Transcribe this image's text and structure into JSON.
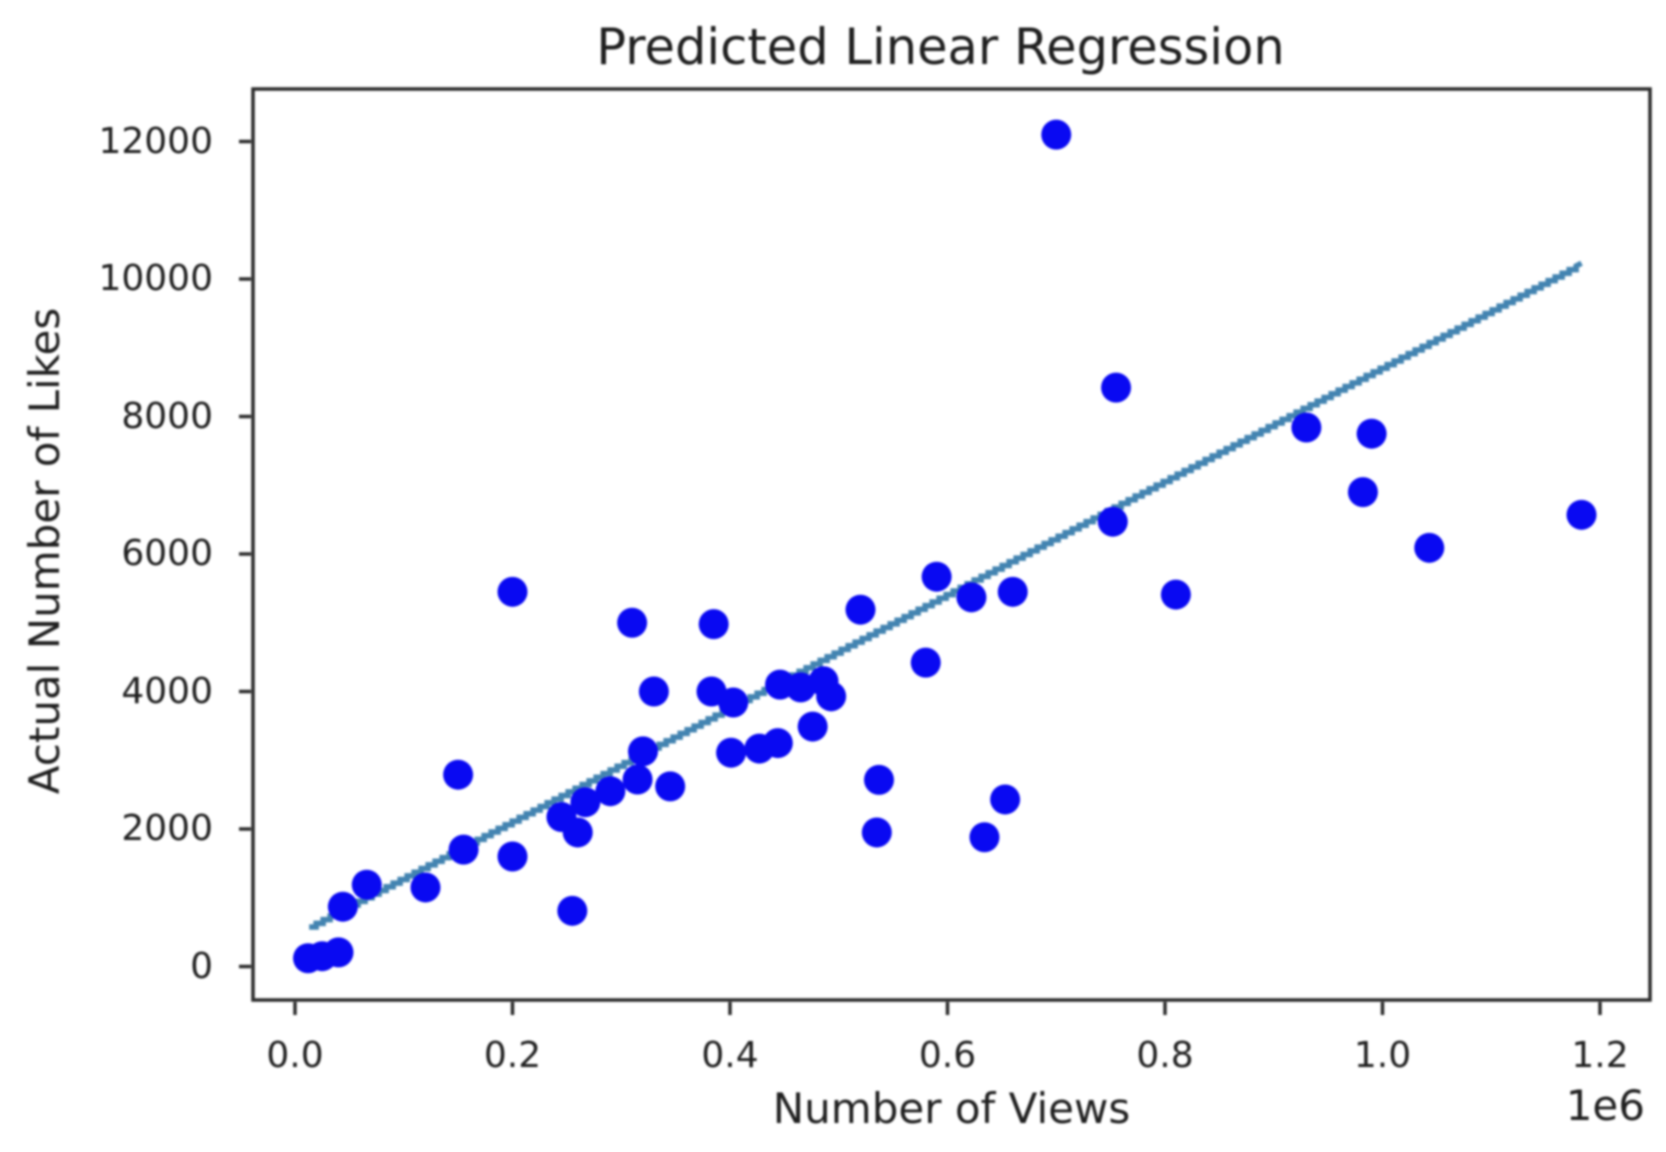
{
  "title": "Predicted Linear Regression",
  "x_axis_label": "Number of Views",
  "y_axis_label": "Actual Number of Likes",
  "x_offset_label": "1e6",
  "colors": {
    "dot": "#0909f2",
    "line": "#4384b1",
    "text": "#1f1f1f",
    "spine": "#2b2b2b",
    "background": "#ffffff"
  },
  "chart_data": {
    "type": "scatter",
    "title": "Predicted Linear Regression",
    "xlabel": "Number of Views",
    "ylabel": "Actual Number of Likes",
    "x_unit_multiplier": "1e6",
    "xlim": [
      -0.039,
      1.246
    ],
    "ylim": [
      -490,
      12760
    ],
    "x_ticks": [
      "0.0",
      "0.2",
      "0.4",
      "0.6",
      "0.8",
      "1.0",
      "1.2"
    ],
    "y_ticks": [
      "0",
      "2000",
      "4000",
      "6000",
      "8000",
      "10000",
      "12000"
    ],
    "grid": false,
    "legend": false,
    "points_x_in_millions_y_likes": [
      [
        0.012,
        120
      ],
      [
        0.025,
        150
      ],
      [
        0.04,
        205
      ],
      [
        0.044,
        870
      ],
      [
        0.066,
        1190
      ],
      [
        0.12,
        1150
      ],
      [
        0.155,
        1700
      ],
      [
        0.15,
        2790
      ],
      [
        0.2,
        1600
      ],
      [
        0.245,
        2175
      ],
      [
        0.2,
        5450
      ],
      [
        0.255,
        810
      ],
      [
        0.26,
        1950
      ],
      [
        0.267,
        2390
      ],
      [
        0.29,
        2550
      ],
      [
        0.315,
        2720
      ],
      [
        0.345,
        2620
      ],
      [
        0.32,
        3130
      ],
      [
        0.31,
        5000
      ],
      [
        0.33,
        4000
      ],
      [
        0.385,
        4980
      ],
      [
        0.383,
        4000
      ],
      [
        0.403,
        3840
      ],
      [
        0.401,
        3110
      ],
      [
        0.427,
        3170
      ],
      [
        0.444,
        3250
      ],
      [
        0.446,
        4100
      ],
      [
        0.465,
        4060
      ],
      [
        0.486,
        4150
      ],
      [
        0.493,
        3930
      ],
      [
        0.476,
        3490
      ],
      [
        0.52,
        5190
      ],
      [
        0.537,
        2715
      ],
      [
        0.535,
        1950
      ],
      [
        0.58,
        4420
      ],
      [
        0.59,
        5670
      ],
      [
        0.622,
        5370
      ],
      [
        0.66,
        5450
      ],
      [
        0.634,
        1880
      ],
      [
        0.653,
        2430
      ],
      [
        0.7,
        12100
      ],
      [
        0.755,
        8420
      ],
      [
        0.752,
        6470
      ],
      [
        0.81,
        5410
      ],
      [
        0.93,
        7840
      ],
      [
        0.99,
        7750
      ],
      [
        0.982,
        6900
      ],
      [
        1.043,
        6090
      ],
      [
        1.183,
        6570
      ]
    ],
    "regression_line": {
      "x1": 0.013,
      "y1": 575,
      "x2": 1.183,
      "y2": 10230
    }
  }
}
